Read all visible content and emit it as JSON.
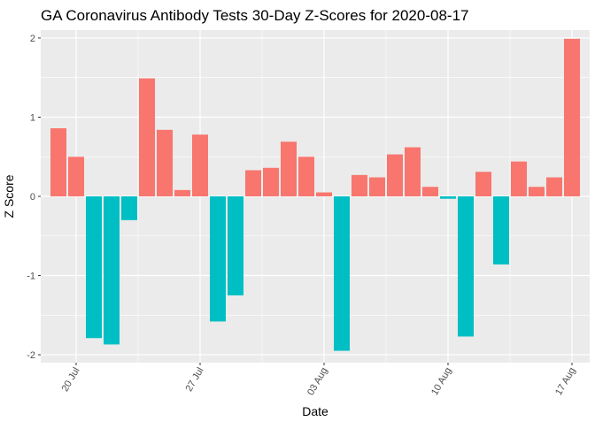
{
  "chart_data": {
    "type": "bar",
    "title": "GA Coronavirus Antibody Tests 30-Day Z-Scores for 2020-08-17",
    "xlabel": "Date",
    "ylabel": "Z Score",
    "x_range": [
      "2020-07-18",
      "2020-08-18"
    ],
    "ylim": [
      -2.1,
      2.1
    ],
    "y_ticks": [
      -2,
      -1,
      0,
      1,
      2
    ],
    "y_tick_labels": [
      "-2",
      "-1",
      "0",
      "1",
      "2"
    ],
    "x_ticks": [
      "2020-07-20",
      "2020-07-27",
      "2020-08-03",
      "2020-08-10",
      "2020-08-17"
    ],
    "x_tick_labels": [
      "20 Jul",
      "27 Jul",
      "03 Aug",
      "10 Aug",
      "17 Aug"
    ],
    "grid": true,
    "legend": "none",
    "colors": {
      "positive": "#F8766D",
      "negative": "#00BFC4",
      "panel": "#EBEBEB",
      "grid": "#FFFFFF",
      "axis_text": "#4D4D4D"
    },
    "x": [
      "2020-07-19",
      "2020-07-20",
      "2020-07-21",
      "2020-07-22",
      "2020-07-23",
      "2020-07-24",
      "2020-07-25",
      "2020-07-26",
      "2020-07-27",
      "2020-07-28",
      "2020-07-29",
      "2020-07-30",
      "2020-07-31",
      "2020-08-01",
      "2020-08-02",
      "2020-08-03",
      "2020-08-04",
      "2020-08-05",
      "2020-08-06",
      "2020-08-07",
      "2020-08-08",
      "2020-08-09",
      "2020-08-10",
      "2020-08-11",
      "2020-08-12",
      "2020-08-13",
      "2020-08-14",
      "2020-08-15",
      "2020-08-16",
      "2020-08-17"
    ],
    "values": [
      0.86,
      0.5,
      -1.79,
      -1.87,
      -0.3,
      1.49,
      0.84,
      0.08,
      0.78,
      -1.58,
      -1.25,
      0.33,
      0.36,
      0.69,
      0.5,
      0.05,
      -1.95,
      0.27,
      0.24,
      0.53,
      0.62,
      0.12,
      -0.03,
      -1.77,
      0.31,
      -0.86,
      0.44,
      0.12,
      0.24,
      1.99
    ]
  }
}
